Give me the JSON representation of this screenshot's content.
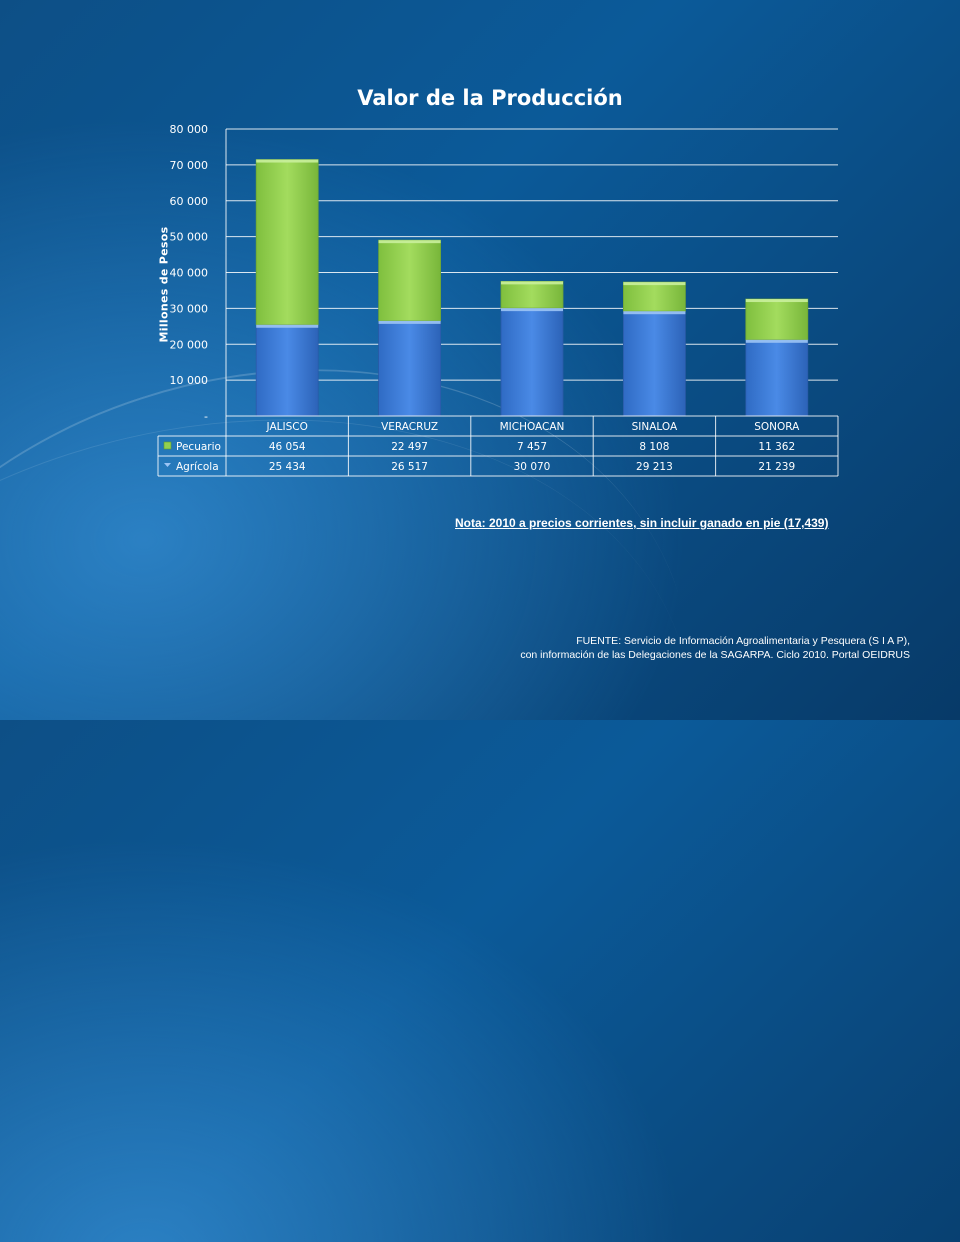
{
  "chart_data": {
    "type": "bar",
    "stacked": true,
    "title": "Valor de la Producción",
    "ylabel": "Millones de Pesos",
    "xlabel": "",
    "categories": [
      "JALISCO",
      "VERACRUZ",
      "MICHOACAN",
      "SINALOA",
      "SONORA"
    ],
    "ylim": [
      0,
      80000
    ],
    "yticks": [
      0,
      10000,
      20000,
      30000,
      40000,
      50000,
      60000,
      70000,
      80000
    ],
    "ytick_labels": [
      "-",
      "10 000",
      "20 000",
      "30 000",
      "40 000",
      "50 000",
      "60 000",
      "70 000",
      "80 000"
    ],
    "grid": true,
    "legend_placement": "data-table",
    "series": [
      {
        "name": "Agrícola",
        "color": "#3d7fd9",
        "values": [
          25434,
          26517,
          30070,
          29213,
          21239
        ],
        "labels": [
          "25 434",
          "26 517",
          "30 070",
          "29 213",
          "21 239"
        ]
      },
      {
        "name": "Pecuario",
        "color": "#92d050",
        "values": [
          46054,
          22497,
          7457,
          8108,
          11362
        ],
        "labels": [
          "46 054",
          "22 497",
          "7 457",
          "8 108",
          "11 362"
        ]
      }
    ]
  },
  "note": "Nota: 2010 a precios corrientes, sin incluir ganado en pie (17,439)",
  "source": {
    "line1": "FUENTE: Servicio de Información Agroalimentaria y Pesquera (S I A P),",
    "line2": "con información de las Delegaciones de la SAGARPA. Ciclo 2010. Portal OEIDRUS"
  }
}
